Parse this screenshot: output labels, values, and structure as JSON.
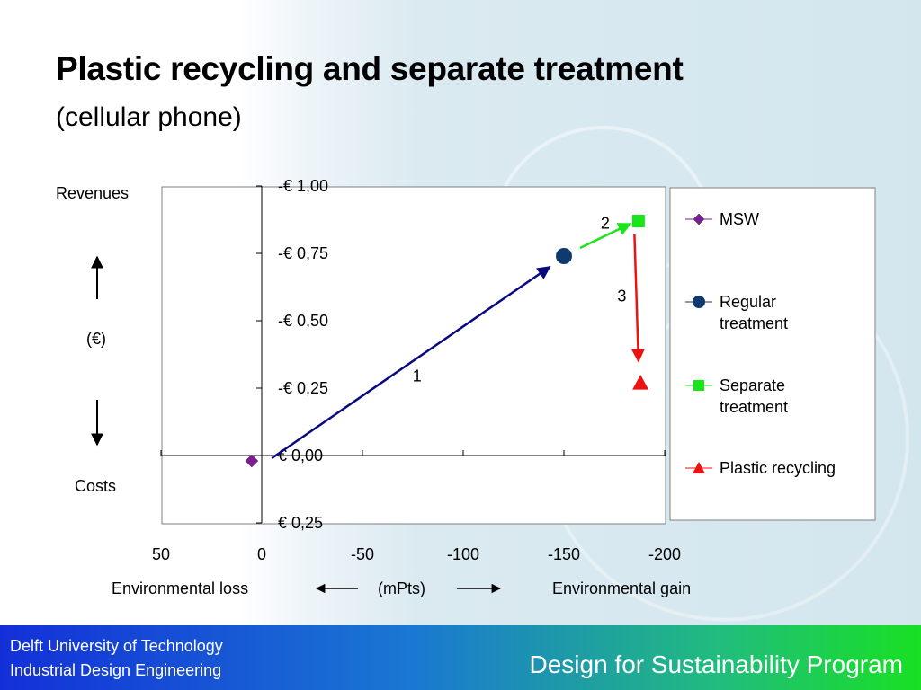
{
  "slide": {
    "title": "Plastic recycling and separate treatment",
    "subtitle": "(cellular phone)",
    "revenues_label": "Revenues",
    "currency_label": "(€)",
    "costs_label": "Costs",
    "x_left_label": "Environmental loss",
    "x_unit_label": "(mPts)",
    "x_right_label": "Environmental gain"
  },
  "footer": {
    "org_line1": "Delft University of Technology",
    "org_line2": "Industrial Design Engineering",
    "program": "Design for Sustainability Program"
  },
  "chart_data": {
    "type": "scatter",
    "x_ticks": [
      50,
      0,
      -50,
      -100,
      -150,
      -200
    ],
    "x_tick_labels": [
      "50",
      "0",
      "-50",
      "-100",
      "-150",
      "-200"
    ],
    "xlim": [
      50,
      -200
    ],
    "y_ticks": [
      -0.25,
      0,
      0.25,
      0.5,
      0.75,
      1.0
    ],
    "y_tick_labels": [
      "€ 0,25",
      "€ 0,00",
      "-€ 0,25",
      "-€ 0,50",
      "-€ 0,75",
      "-€ 1,00"
    ],
    "ylim": [
      -0.25,
      1.0
    ],
    "series": [
      {
        "name": "MSW",
        "marker": "diamond",
        "color": "#7a1f8f",
        "points": [
          [
            5,
            -0.02
          ]
        ]
      },
      {
        "name": "Regular\ntreatment",
        "marker": "circle",
        "color": "#0e3a6e",
        "points": [
          [
            -150,
            0.74
          ]
        ]
      },
      {
        "name": "Separate\ntreatment",
        "marker": "square",
        "color": "#19e619",
        "points": [
          [
            -187,
            0.87
          ]
        ]
      },
      {
        "name": "Plastic recycling",
        "marker": "triangle",
        "color": "#ee1111",
        "points": [
          [
            -188,
            0.27
          ]
        ]
      }
    ],
    "arrows": [
      {
        "label": "1",
        "color": "#0a0a80",
        "from": [
          -5,
          -0.01
        ],
        "to": [
          -143,
          0.7
        ]
      },
      {
        "label": "2",
        "color": "#19e619",
        "from": [
          -158,
          0.77
        ],
        "to": [
          -183,
          0.86
        ]
      },
      {
        "label": "3",
        "color": "#ee1111",
        "from": [
          -185,
          0.82
        ],
        "to": [
          -187,
          0.35
        ]
      }
    ],
    "legend": "right"
  }
}
